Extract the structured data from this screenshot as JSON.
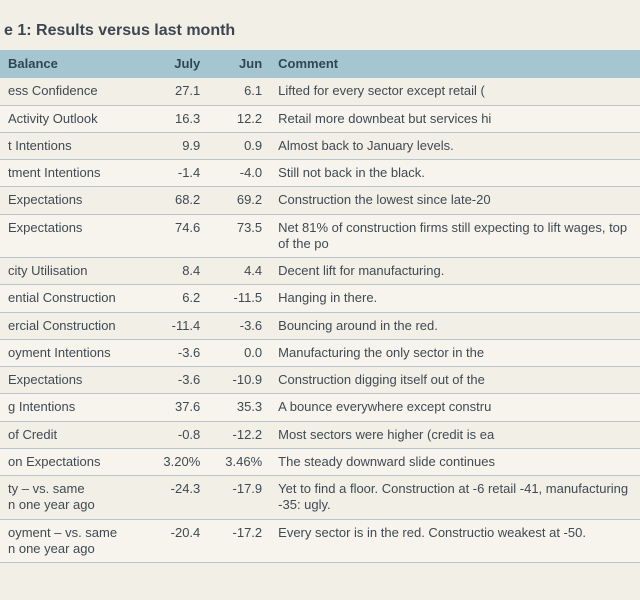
{
  "title": "e 1: Results versus last month",
  "columns": [
    "Balance",
    "July",
    "Jun",
    "Comment"
  ],
  "rows": [
    {
      "name": "ess Confidence",
      "july": "27.1",
      "jun": "6.1",
      "comment": "Lifted for every sector except retail ("
    },
    {
      "name": "Activity Outlook",
      "july": "16.3",
      "jun": "12.2",
      "comment": "Retail more downbeat but services hi"
    },
    {
      "name": "t Intentions",
      "july": "9.9",
      "jun": "0.9",
      "comment": "Almost back to January levels."
    },
    {
      "name": "tment Intentions",
      "july": "-1.4",
      "jun": "-4.0",
      "comment": "Still not back in the black."
    },
    {
      "name": "Expectations",
      "july": "68.2",
      "jun": "69.2",
      "comment": "Construction the lowest since late-20"
    },
    {
      "name": " Expectations",
      "july": "74.6",
      "jun": "73.5",
      "comment": "Net 81% of construction firms still expecting to lift wages, top of the po",
      "twolineComment": true
    },
    {
      "name": "city Utilisation",
      "july": "8.4",
      "jun": "4.4",
      "comment": "Decent lift for manufacturing."
    },
    {
      "name": "ential Construction",
      "july": "6.2",
      "jun": "-11.5",
      "comment": "Hanging in there."
    },
    {
      "name": "ercial Construction",
      "july": "-11.4",
      "jun": "-3.6",
      "comment": "Bouncing around in the red."
    },
    {
      "name": "oyment Intentions",
      "july": "-3.6",
      "jun": "0.0",
      "comment": "Manufacturing the only sector in the "
    },
    {
      "name": " Expectations",
      "july": "-3.6",
      "jun": "-10.9",
      "comment": "Construction digging itself out of the "
    },
    {
      "name": "g Intentions",
      "july": "37.6",
      "jun": "35.3",
      "comment": "A bounce everywhere except constru"
    },
    {
      "name": "of Credit",
      "july": "-0.8",
      "jun": "-12.2",
      "comment": "Most sectors were higher (credit is ea"
    },
    {
      "name": "on Expectations",
      "july": "3.20%",
      "jun": "3.46%",
      "comment": "The steady downward slide continues"
    },
    {
      "name": "ty – vs. same\nn one year ago",
      "july": "-24.3",
      "jun": "-17.9",
      "comment": "Yet to find a floor. Construction at -6 retail -41, manufacturing -35: ugly.",
      "twoline": true,
      "twolineComment": true
    },
    {
      "name": "oyment – vs. same\nn one year ago",
      "july": "-20.4",
      "jun": "-17.2",
      "comment": "Every sector is in the red. Constructio weakest at -50.",
      "twoline": true,
      "twolineComment": true
    }
  ]
}
